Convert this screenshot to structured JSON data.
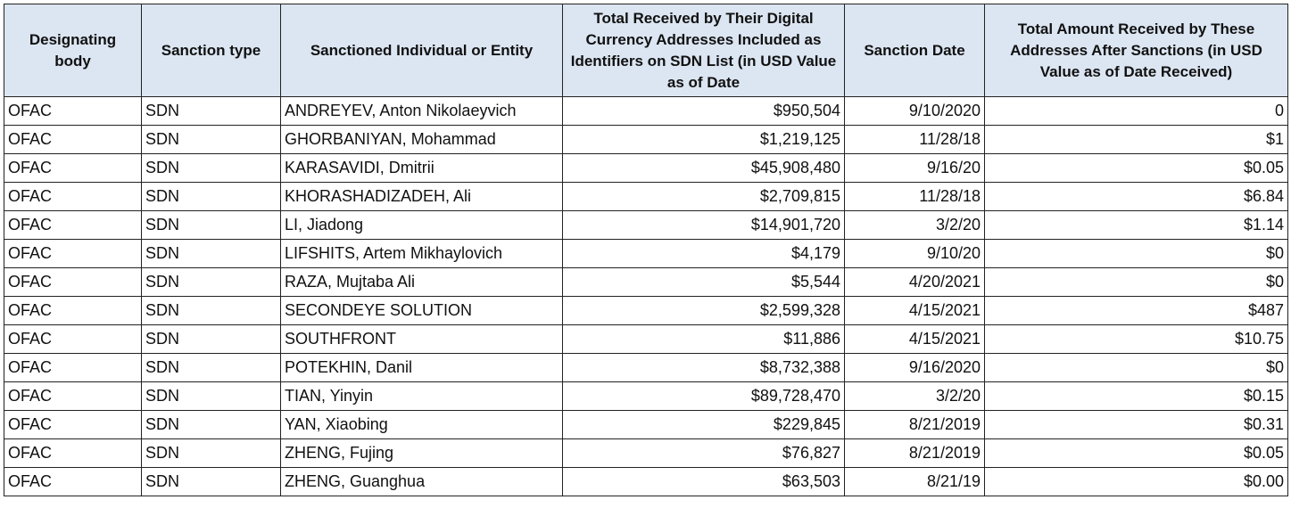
{
  "table": {
    "headers": [
      "Designating body",
      "Sanction type",
      "Sanctioned Individual or Entity",
      "Total Received by Their Digital Currency Addresses Included as Identifiers on SDN List (in USD Value as of Date",
      "Sanction Date",
      "Total Amount Received by These Addresses After Sanctions (in USD Value as of Date Received)"
    ],
    "rows": [
      [
        "OFAC",
        "SDN",
        "ANDREYEV, Anton Nikolaeyvich",
        "$950,504",
        "9/10/2020",
        "0"
      ],
      [
        "OFAC",
        "SDN",
        "GHORBANIYAN, Mohammad",
        "$1,219,125",
        "11/28/18",
        "$1"
      ],
      [
        "OFAC",
        "SDN",
        "KARASAVIDI, Dmitrii",
        "$45,908,480",
        "9/16/20",
        "$0.05"
      ],
      [
        "OFAC",
        "SDN",
        "KHORASHADIZADEH, Ali",
        "$2,709,815",
        "11/28/18",
        "$6.84"
      ],
      [
        "OFAC",
        "SDN",
        "LI, Jiadong",
        "$14,901,720",
        "3/2/20",
        "$1.14"
      ],
      [
        "OFAC",
        "SDN",
        "LIFSHITS, Artem Mikhaylovich",
        "$4,179",
        "9/10/20",
        "$0"
      ],
      [
        "OFAC",
        "SDN",
        "RAZA, Mujtaba Ali",
        "$5,544",
        "4/20/2021",
        "$0"
      ],
      [
        "OFAC",
        "SDN",
        "SECONDEYE SOLUTION",
        "$2,599,328",
        "4/15/2021",
        "$487"
      ],
      [
        "OFAC",
        "SDN",
        "SOUTHFRONT",
        "$11,886",
        "4/15/2021",
        "$10.75"
      ],
      [
        "OFAC",
        "SDN",
        "POTEKHIN, Danil",
        "$8,732,388",
        "9/16/2020",
        "$0"
      ],
      [
        "OFAC",
        "SDN",
        "TIAN, Yinyin",
        "$89,728,470",
        "3/2/20",
        "$0.15"
      ],
      [
        "OFAC",
        "SDN",
        "YAN, Xiaobing",
        "$229,845",
        "8/21/2019",
        "$0.31"
      ],
      [
        "OFAC",
        "SDN",
        "ZHENG, Fujing",
        "$76,827",
        "8/21/2019",
        "$0.05"
      ],
      [
        "OFAC",
        "SDN",
        "ZHENG, Guanghua",
        "$63,503",
        "8/21/19",
        "$0.00"
      ]
    ]
  }
}
